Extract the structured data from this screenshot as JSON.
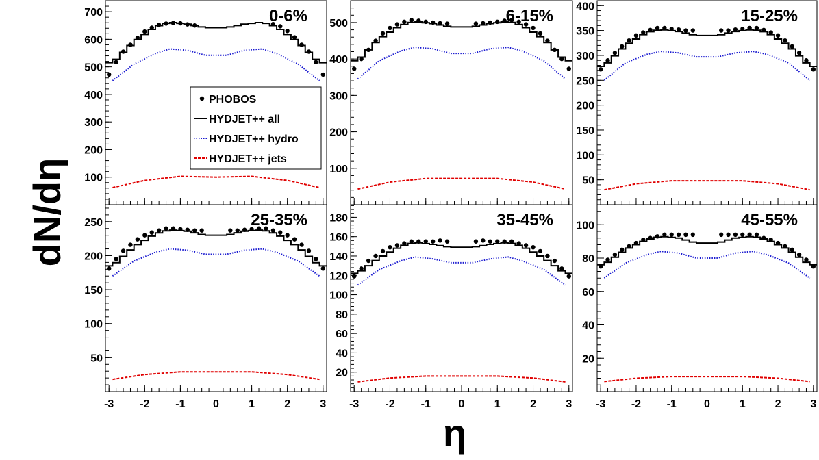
{
  "figure": {
    "ylabel": "dN/dη",
    "xlabel": "η"
  },
  "legend": {
    "items": [
      {
        "label": "PHOBOS",
        "style": "marker"
      },
      {
        "label": "HYDJET++ all",
        "style": "solid"
      },
      {
        "label": "HYDJET++ hydro",
        "style": "blue-dotted"
      },
      {
        "label": "HYDJET++ jets",
        "style": "red-dashed"
      }
    ]
  },
  "colors": {
    "all": "#000000",
    "hydro": "#1a1ad0",
    "jets": "#e00000",
    "phobos": "#000000",
    "frame": "#000000"
  },
  "chart_data": [
    {
      "type": "line",
      "title": "0-6%",
      "xlim": [
        -3.1,
        3.1
      ],
      "ylim": [
        0,
        740
      ],
      "xticks": [
        -3,
        -2,
        -1,
        0,
        1,
        2,
        3
      ],
      "yticks": [
        100,
        200,
        300,
        400,
        500,
        600,
        700
      ],
      "series": [
        {
          "name": "HYDJET++ all",
          "x": [
            -2.9,
            -2.3,
            -1.7,
            -1.3,
            -0.8,
            -0.3,
            0.3,
            0.8,
            1.3,
            1.7,
            2.3,
            2.9
          ],
          "y": [
            515,
            590,
            645,
            662,
            655,
            642,
            642,
            655,
            662,
            645,
            590,
            515
          ]
        },
        {
          "name": "HYDJET++ hydro",
          "x": [
            -2.9,
            -2.3,
            -1.7,
            -1.3,
            -0.8,
            -0.3,
            0.3,
            0.8,
            1.3,
            1.7,
            2.3,
            2.9
          ],
          "y": [
            450,
            510,
            548,
            565,
            560,
            542,
            542,
            560,
            565,
            548,
            510,
            450
          ]
        },
        {
          "name": "HYDJET++ jets",
          "x": [
            -2.9,
            -2,
            -1,
            0,
            1,
            2,
            2.9
          ],
          "y": [
            62,
            88,
            103,
            100,
            103,
            88,
            62
          ]
        },
        {
          "name": "PHOBOS",
          "x": [
            -3.0,
            -2.8,
            -2.6,
            -2.4,
            -2.2,
            -2.0,
            -1.8,
            -1.6,
            -1.4,
            -1.2,
            -1.0,
            -0.8,
            -0.6,
            1.6,
            1.8,
            2.0,
            2.2,
            2.4,
            2.6,
            2.8,
            3.0
          ],
          "y": [
            472,
            517,
            555,
            580,
            605,
            628,
            642,
            652,
            657,
            659,
            658,
            654,
            650,
            655,
            647,
            630,
            607,
            580,
            555,
            517,
            472
          ]
        }
      ]
    },
    {
      "type": "line",
      "title": "6-15%",
      "xlim": [
        -3.1,
        3.1
      ],
      "ylim": [
        0,
        560
      ],
      "xticks": [
        -3,
        -2,
        -1,
        0,
        1,
        2,
        3
      ],
      "yticks": [
        100,
        200,
        300,
        400,
        500
      ],
      "series": [
        {
          "name": "HYDJET++ all",
          "x": [
            -2.9,
            -2.3,
            -1.7,
            -1.3,
            -0.8,
            -0.3,
            0.3,
            0.8,
            1.3,
            1.7,
            2.3,
            2.9
          ],
          "y": [
            395,
            455,
            492,
            503,
            497,
            488,
            488,
            497,
            503,
            492,
            455,
            395
          ]
        },
        {
          "name": "HYDJET++ hydro",
          "x": [
            -2.9,
            -2.3,
            -1.7,
            -1.3,
            -0.8,
            -0.3,
            0.3,
            0.8,
            1.3,
            1.7,
            2.3,
            2.9
          ],
          "y": [
            345,
            395,
            422,
            432,
            428,
            415,
            415,
            428,
            432,
            422,
            395,
            345
          ]
        },
        {
          "name": "HYDJET++ jets",
          "x": [
            -2.9,
            -2,
            -1,
            0,
            1,
            2,
            2.9
          ],
          "y": [
            43,
            62,
            72,
            72,
            72,
            62,
            43
          ]
        },
        {
          "name": "PHOBOS",
          "x": [
            -3.0,
            -2.8,
            -2.6,
            -2.4,
            -2.2,
            -2.0,
            -1.8,
            -1.6,
            -1.4,
            -1.2,
            -1.0,
            -0.8,
            -0.6,
            -0.4,
            0.4,
            0.6,
            0.8,
            1.0,
            1.2,
            1.4,
            1.6,
            1.8,
            2.0,
            2.2,
            2.4,
            2.6,
            2.8,
            3.0
          ],
          "y": [
            373,
            400,
            425,
            450,
            470,
            485,
            495,
            502,
            507,
            505,
            502,
            500,
            498,
            497,
            497,
            498,
            500,
            502,
            505,
            507,
            502,
            495,
            485,
            470,
            450,
            425,
            400,
            373
          ]
        }
      ]
    },
    {
      "type": "line",
      "title": "15-25%",
      "xlim": [
        -3.1,
        3.1
      ],
      "ylim": [
        0,
        410
      ],
      "xticks": [
        -3,
        -2,
        -1,
        0,
        1,
        2,
        3
      ],
      "yticks": [
        50,
        100,
        150,
        200,
        250,
        300,
        350,
        400
      ],
      "series": [
        {
          "name": "HYDJET++ all",
          "x": [
            -2.9,
            -2.3,
            -1.7,
            -1.3,
            -0.8,
            -0.3,
            0.3,
            0.8,
            1.3,
            1.7,
            2.3,
            2.9
          ],
          "y": [
            278,
            320,
            346,
            352,
            348,
            340,
            340,
            348,
            352,
            346,
            320,
            278
          ]
        },
        {
          "name": "HYDJET++ hydro",
          "x": [
            -2.9,
            -2.3,
            -1.7,
            -1.3,
            -0.8,
            -0.3,
            0.3,
            0.8,
            1.3,
            1.7,
            2.3,
            2.9
          ],
          "y": [
            250,
            285,
            302,
            308,
            305,
            297,
            297,
            305,
            308,
            302,
            285,
            250
          ]
        },
        {
          "name": "HYDJET++ jets",
          "x": [
            -2.9,
            -2,
            -1,
            0,
            1,
            2,
            2.9
          ],
          "y": [
            30,
            42,
            48,
            48,
            48,
            42,
            30
          ]
        },
        {
          "name": "PHOBOS",
          "x": [
            -3.0,
            -2.8,
            -2.6,
            -2.4,
            -2.2,
            -2.0,
            -1.8,
            -1.6,
            -1.4,
            -1.2,
            -1.0,
            -0.8,
            -0.6,
            -0.4,
            0.4,
            0.6,
            0.8,
            1.0,
            1.2,
            1.4,
            1.6,
            1.8,
            2.0,
            2.2,
            2.4,
            2.6,
            2.8,
            3.0
          ],
          "y": [
            272,
            290,
            305,
            318,
            330,
            340,
            346,
            351,
            355,
            355,
            353,
            352,
            350,
            350,
            350,
            350,
            352,
            353,
            355,
            355,
            351,
            346,
            340,
            330,
            318,
            305,
            290,
            272
          ]
        }
      ]
    },
    {
      "type": "line",
      "title": "25-35%",
      "xlim": [
        -3.1,
        3.1
      ],
      "ylim": [
        0,
        275
      ],
      "xticks": [
        -3,
        -2,
        -1,
        0,
        1,
        2,
        3
      ],
      "yticks": [
        50,
        100,
        150,
        200,
        250
      ],
      "series": [
        {
          "name": "HYDJET++ all",
          "x": [
            -2.9,
            -2.3,
            -1.7,
            -1.3,
            -0.8,
            -0.3,
            0.3,
            0.8,
            1.3,
            1.7,
            2.3,
            2.9
          ],
          "y": [
            185,
            213,
            232,
            238,
            236,
            230,
            230,
            236,
            238,
            232,
            213,
            185
          ]
        },
        {
          "name": "HYDJET++ hydro",
          "x": [
            -2.9,
            -2.3,
            -1.7,
            -1.3,
            -0.8,
            -0.3,
            0.3,
            0.8,
            1.3,
            1.7,
            2.3,
            2.9
          ],
          "y": [
            170,
            192,
            205,
            210,
            208,
            202,
            202,
            208,
            210,
            205,
            192,
            170
          ]
        },
        {
          "name": "HYDJET++ jets",
          "x": [
            -2.9,
            -2,
            -1,
            0,
            1,
            2,
            2.9
          ],
          "y": [
            18,
            25,
            29,
            29,
            29,
            25,
            18
          ]
        },
        {
          "name": "PHOBOS",
          "x": [
            -3.0,
            -2.8,
            -2.6,
            -2.4,
            -2.2,
            -2.0,
            -1.8,
            -1.6,
            -1.4,
            -1.2,
            -1.0,
            -0.8,
            -0.6,
            -0.4,
            0.4,
            0.6,
            0.8,
            1.0,
            1.2,
            1.4,
            1.6,
            1.8,
            2.0,
            2.2,
            2.4,
            2.6,
            2.8,
            3.0
          ],
          "y": [
            181,
            195,
            207,
            216,
            224,
            230,
            234,
            237,
            240,
            240,
            239,
            238,
            237,
            237,
            237,
            237,
            238,
            239,
            240,
            240,
            237,
            234,
            230,
            224,
            216,
            207,
            195,
            181
          ]
        }
      ]
    },
    {
      "type": "line",
      "title": "35-45%",
      "xlim": [
        -3.1,
        3.1
      ],
      "ylim": [
        0,
        193
      ],
      "xticks": [
        -3,
        -2,
        -1,
        0,
        1,
        2,
        3
      ],
      "yticks": [
        20,
        40,
        60,
        80,
        100,
        120,
        140,
        160,
        180
      ],
      "series": [
        {
          "name": "HYDJET++ all",
          "x": [
            -2.9,
            -2.3,
            -1.7,
            -1.3,
            -0.8,
            -0.3,
            0.3,
            0.8,
            1.3,
            1.7,
            2.3,
            2.9
          ],
          "y": [
            122,
            138,
            150,
            154,
            152,
            149,
            149,
            152,
            154,
            150,
            138,
            122
          ]
        },
        {
          "name": "HYDJET++ hydro",
          "x": [
            -2.9,
            -2.3,
            -1.7,
            -1.3,
            -0.8,
            -0.3,
            0.3,
            0.8,
            1.3,
            1.7,
            2.3,
            2.9
          ],
          "y": [
            110,
            126,
            135,
            139,
            137,
            133,
            133,
            137,
            139,
            135,
            126,
            110
          ]
        },
        {
          "name": "HYDJET++ jets",
          "x": [
            -2.9,
            -2,
            -1,
            0,
            1,
            2,
            2.9
          ],
          "y": [
            10,
            14,
            16,
            16,
            16,
            14,
            10
          ]
        },
        {
          "name": "PHOBOS",
          "x": [
            -3.0,
            -2.8,
            -2.6,
            -2.4,
            -2.2,
            -2.0,
            -1.8,
            -1.6,
            -1.4,
            -1.2,
            -1.0,
            -0.8,
            -0.6,
            -0.4,
            0.4,
            0.6,
            0.8,
            1.0,
            1.2,
            1.4,
            1.6,
            1.8,
            2.0,
            2.2,
            2.4,
            2.6,
            2.8,
            3.0
          ],
          "y": [
            119,
            127,
            135,
            140,
            145,
            149,
            151,
            153,
            155,
            155,
            155,
            155,
            156,
            155,
            155,
            156,
            155,
            155,
            155,
            155,
            153,
            151,
            149,
            145,
            140,
            135,
            127,
            119
          ]
        }
      ]
    },
    {
      "type": "line",
      "title": "45-55%",
      "xlim": [
        -3.1,
        3.1
      ],
      "ylim": [
        0,
        112
      ],
      "xticks": [
        -3,
        -2,
        -1,
        0,
        1,
        2,
        3
      ],
      "yticks": [
        20,
        40,
        60,
        80,
        100
      ],
      "series": [
        {
          "name": "HYDJET++ all",
          "x": [
            -2.9,
            -2.3,
            -1.7,
            -1.3,
            -0.8,
            -0.3,
            0.3,
            0.8,
            1.3,
            1.7,
            2.3,
            2.9
          ],
          "y": [
            76,
            85,
            91,
            93,
            92,
            89,
            89,
            92,
            93,
            91,
            85,
            76
          ]
        },
        {
          "name": "HYDJET++ hydro",
          "x": [
            -2.9,
            -2.3,
            -1.7,
            -1.3,
            -0.8,
            -0.3,
            0.3,
            0.8,
            1.3,
            1.7,
            2.3,
            2.9
          ],
          "y": [
            68,
            77,
            82,
            84,
            83,
            80,
            80,
            83,
            84,
            82,
            77,
            68
          ]
        },
        {
          "name": "HYDJET++ jets",
          "x": [
            -2.9,
            -2,
            -1,
            0,
            1,
            2,
            2.9
          ],
          "y": [
            6,
            8,
            9,
            9,
            9,
            8,
            6
          ]
        },
        {
          "name": "PHOBOS",
          "x": [
            -3.0,
            -2.8,
            -2.6,
            -2.4,
            -2.2,
            -2.0,
            -1.8,
            -1.6,
            -1.4,
            -1.2,
            -1.0,
            -0.8,
            -0.6,
            -0.4,
            0.4,
            0.6,
            0.8,
            1.0,
            1.2,
            1.4,
            1.6,
            1.8,
            2.0,
            2.2,
            2.4,
            2.6,
            2.8,
            3.0
          ],
          "y": [
            75,
            79,
            82,
            85,
            87,
            89,
            91,
            92,
            93,
            94,
            94,
            94,
            94,
            94,
            94,
            94,
            94,
            94,
            94,
            94,
            92,
            91,
            89,
            87,
            85,
            82,
            79,
            75
          ]
        }
      ]
    }
  ]
}
